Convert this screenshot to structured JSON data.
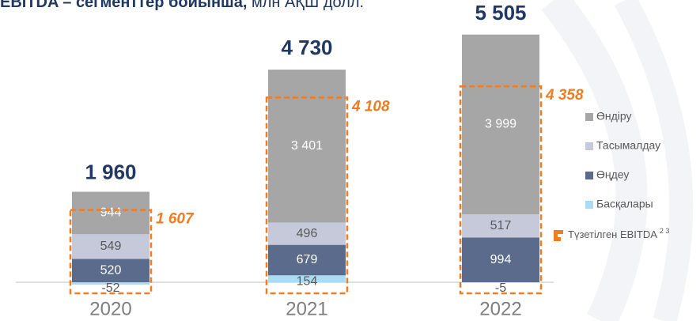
{
  "chart_data": {
    "type": "stacked-bar",
    "title": "EBITDA – сегменттер бойынша,",
    "unit": "млн АҚШ долл.",
    "categories": [
      "2020",
      "2021",
      "2022"
    ],
    "series": [
      {
        "name": "Басқалары",
        "color": "#a9dcf5",
        "values": [
          -52,
          154,
          -5
        ],
        "value_labels": [
          "-52",
          "154",
          "-5"
        ]
      },
      {
        "name": "Өңдеу",
        "color": "#5a6b8c",
        "values": [
          520,
          679,
          994
        ],
        "value_labels": [
          "520",
          "679",
          "994"
        ]
      },
      {
        "name": "Тасымалдау",
        "color": "#c5c9d9",
        "values": [
          549,
          496,
          517
        ],
        "value_labels": [
          "549",
          "496",
          "517"
        ]
      },
      {
        "name": "Өндіру",
        "color": "#a6a6a6",
        "values": [
          944,
          3401,
          3999
        ],
        "value_labels": [
          "944",
          "3 401",
          "3 999"
        ]
      }
    ],
    "legend_order": [
      3,
      2,
      1,
      0
    ],
    "totals": [
      1960,
      4730,
      5505
    ],
    "total_labels": [
      "1 960",
      "4 730",
      "5 505"
    ],
    "adjusted": {
      "name": "Түзетілген EBITDA",
      "footnotes": "2 3",
      "color": "#f07d22",
      "values": [
        1607,
        4108,
        4358
      ],
      "value_labels": [
        "1 607",
        "4 108",
        "4 358"
      ]
    }
  }
}
